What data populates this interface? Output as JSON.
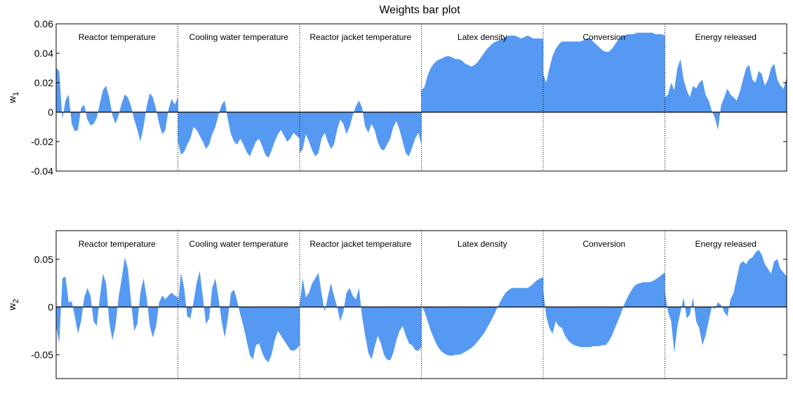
{
  "chart_data": {
    "type": "area",
    "title": "Weights bar plot",
    "segments": [
      "Reactor temperature",
      "Cooling water temperature",
      "Reactor jacket temperature",
      "Latex density",
      "Conversion",
      "Energy released"
    ],
    "color": "#5599f2",
    "panels": [
      {
        "ylabel": "w",
        "ylabel_sub": "1",
        "ylim": [
          -0.04,
          0.06
        ],
        "yticks": [
          -0.04,
          -0.02,
          0,
          0.02,
          0.04,
          0.06
        ],
        "ytick_labels": [
          "-0.04",
          "-0.02",
          "0",
          "0.02",
          "0.04",
          "0.06"
        ],
        "series": [
          [
            0.03,
            0.028,
            -0.005,
            0.008,
            0.012,
            -0.008,
            -0.013,
            -0.012,
            0.003,
            0.005,
            -0.005,
            -0.009,
            -0.008,
            -0.004,
            0.006,
            0.015,
            0.018,
            0.01,
            -0.002,
            -0.008,
            -0.002,
            0.006,
            0.012,
            0.01,
            0.004,
            -0.005,
            -0.012,
            -0.02,
            -0.01,
            0.004,
            0.013,
            0.01,
            0.002,
            -0.008,
            -0.015,
            -0.012,
            0.002,
            0.009,
            0.005,
            0.01
          ],
          [
            -0.02,
            -0.029,
            -0.027,
            -0.022,
            -0.018,
            -0.01,
            -0.012,
            -0.016,
            -0.02,
            -0.025,
            -0.022,
            -0.015,
            -0.01,
            -0.002,
            0.005,
            0.008,
            -0.005,
            -0.015,
            -0.02,
            -0.022,
            -0.018,
            -0.022,
            -0.027,
            -0.03,
            -0.025,
            -0.02,
            -0.018,
            -0.023,
            -0.029,
            -0.031,
            -0.026,
            -0.02,
            -0.015,
            -0.012,
            -0.016,
            -0.02,
            -0.018,
            -0.014,
            -0.016,
            -0.018
          ],
          [
            -0.028,
            -0.025,
            -0.015,
            -0.02,
            -0.026,
            -0.03,
            -0.028,
            -0.018,
            -0.014,
            -0.02,
            -0.025,
            -0.022,
            -0.012,
            -0.005,
            -0.008,
            -0.015,
            -0.01,
            -0.002,
            0.004,
            0.008,
            0.003,
            -0.01,
            -0.014,
            -0.008,
            -0.012,
            -0.02,
            -0.025,
            -0.026,
            -0.022,
            -0.018,
            -0.01,
            -0.006,
            -0.012,
            -0.02,
            -0.028,
            -0.03,
            -0.024,
            -0.018,
            -0.014,
            -0.022
          ],
          [
            0.015,
            0.017,
            0.025,
            0.03,
            0.033,
            0.035,
            0.036,
            0.037,
            0.038,
            0.038,
            0.037,
            0.036,
            0.036,
            0.035,
            0.033,
            0.032,
            0.031,
            0.032,
            0.034,
            0.037,
            0.04,
            0.043,
            0.045,
            0.047,
            0.048,
            0.049,
            0.05,
            0.051,
            0.052,
            0.052,
            0.052,
            0.051,
            0.05,
            0.051,
            0.052,
            0.051,
            0.05,
            0.05,
            0.05,
            0.05
          ],
          [
            0.026,
            0.02,
            0.03,
            0.038,
            0.043,
            0.046,
            0.048,
            0.048,
            0.048,
            0.048,
            0.048,
            0.048,
            0.048,
            0.049,
            0.05,
            0.05,
            0.048,
            0.046,
            0.044,
            0.042,
            0.041,
            0.041,
            0.043,
            0.046,
            0.049,
            0.051,
            0.052,
            0.053,
            0.053,
            0.053,
            0.054,
            0.054,
            0.054,
            0.054,
            0.054,
            0.054,
            0.053,
            0.053,
            0.053,
            0.052
          ],
          [
            0.01,
            0.012,
            0.02,
            0.015,
            0.03,
            0.036,
            0.022,
            0.015,
            0.01,
            0.018,
            0.016,
            0.02,
            0.022,
            0.012,
            0.008,
            0.001,
            -0.004,
            -0.012,
            0.005,
            0.01,
            0.016,
            0.012,
            0.01,
            0.008,
            0.014,
            0.022,
            0.03,
            0.032,
            0.022,
            0.02,
            0.028,
            0.026,
            0.018,
            0.022,
            0.03,
            0.033,
            0.022,
            0.018,
            0.016,
            0.024
          ]
        ]
      },
      {
        "ylabel": "w",
        "ylabel_sub": "2",
        "ylim": [
          -0.075,
          0.08
        ],
        "yticks": [
          -0.05,
          0,
          0.05
        ],
        "ytick_labels": [
          "-0.05",
          "0",
          "0.05"
        ],
        "series": [
          [
            -0.02,
            -0.038,
            0.03,
            0.032,
            0.005,
            0.006,
            -0.01,
            -0.028,
            -0.015,
            0.01,
            0.02,
            0.012,
            -0.015,
            -0.02,
            0.01,
            0.035,
            0.025,
            -0.015,
            -0.035,
            -0.02,
            0.01,
            0.03,
            0.052,
            0.04,
            0.005,
            -0.025,
            -0.018,
            0.015,
            0.03,
            0.01,
            -0.02,
            -0.032,
            -0.02,
            0.005,
            0.012,
            0.008,
            0.012,
            0.015,
            0.012,
            0.01
          ],
          [
            0.002,
            0.036,
            0.02,
            -0.01,
            -0.012,
            0.005,
            0.025,
            0.038,
            0.01,
            -0.018,
            -0.012,
            0.02,
            0.03,
            0.01,
            -0.015,
            -0.032,
            -0.012,
            0.015,
            0.018,
            0.006,
            -0.008,
            -0.02,
            -0.035,
            -0.05,
            -0.055,
            -0.04,
            -0.038,
            -0.048,
            -0.055,
            -0.058,
            -0.05,
            -0.035,
            -0.025,
            -0.03,
            -0.035,
            -0.04,
            -0.045,
            -0.046,
            -0.044,
            -0.04
          ],
          [
            0.002,
            0.03,
            0.01,
            0.015,
            0.025,
            0.03,
            0.036,
            0.015,
            -0.005,
            0.01,
            0.025,
            0.012,
            0.0,
            -0.015,
            -0.005,
            0.015,
            0.02,
            0.012,
            0.008,
            0.02,
            -0.01,
            -0.03,
            -0.048,
            -0.055,
            -0.042,
            -0.03,
            -0.038,
            -0.05,
            -0.055,
            -0.056,
            -0.048,
            -0.035,
            -0.025,
            -0.02,
            -0.03,
            -0.038,
            -0.04,
            -0.045,
            -0.046,
            -0.042
          ],
          [
            0.002,
            -0.005,
            -0.015,
            -0.025,
            -0.033,
            -0.04,
            -0.045,
            -0.048,
            -0.05,
            -0.051,
            -0.051,
            -0.05,
            -0.05,
            -0.049,
            -0.047,
            -0.045,
            -0.043,
            -0.04,
            -0.036,
            -0.032,
            -0.028,
            -0.022,
            -0.016,
            -0.01,
            -0.003,
            0.004,
            0.01,
            0.015,
            0.018,
            0.02,
            0.02,
            0.02,
            0.02,
            0.02,
            0.02,
            0.022,
            0.025,
            0.028,
            0.03,
            0.031
          ],
          [
            0.018,
            -0.01,
            -0.022,
            -0.028,
            -0.015,
            -0.02,
            -0.022,
            -0.03,
            -0.035,
            -0.038,
            -0.04,
            -0.041,
            -0.042,
            -0.042,
            -0.042,
            -0.042,
            -0.041,
            -0.041,
            -0.041,
            -0.04,
            -0.04,
            -0.036,
            -0.03,
            -0.022,
            -0.014,
            -0.006,
            0.003,
            0.01,
            0.016,
            0.021,
            0.024,
            0.025,
            0.026,
            0.026,
            0.026,
            0.027,
            0.029,
            0.031,
            0.034,
            0.036
          ],
          [
            0.016,
            -0.005,
            -0.015,
            -0.048,
            -0.02,
            -0.005,
            0.01,
            -0.012,
            -0.008,
            0.01,
            -0.015,
            -0.022,
            -0.04,
            -0.03,
            -0.015,
            0.0,
            -0.002,
            0.005,
            0.002,
            -0.005,
            -0.01,
            0.008,
            0.015,
            0.03,
            0.045,
            0.048,
            0.045,
            0.05,
            0.052,
            0.057,
            0.06,
            0.055,
            0.045,
            0.04,
            0.035,
            0.048,
            0.05,
            0.04,
            0.036,
            0.032
          ]
        ]
      }
    ]
  }
}
